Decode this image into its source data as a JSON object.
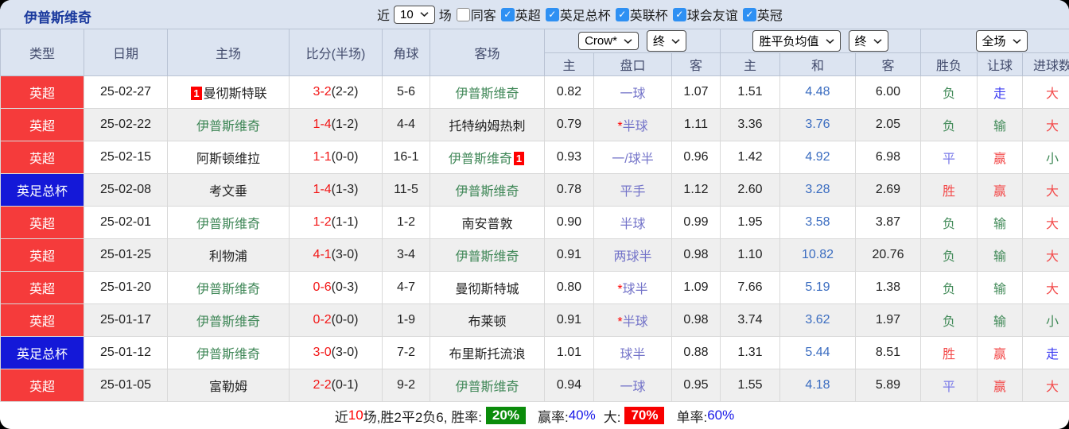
{
  "topbar": {
    "title": "伊普斯维奇",
    "recent_label": "近",
    "recent_value": "10",
    "matches_label": "场",
    "same_venue": {
      "label": "同客",
      "checked": false
    },
    "leagues": [
      {
        "label": "英超",
        "checked": true
      },
      {
        "label": "英足总杯",
        "checked": true
      },
      {
        "label": "英联杯",
        "checked": true
      },
      {
        "label": "球会友谊",
        "checked": true
      },
      {
        "label": "英冠",
        "checked": true
      }
    ]
  },
  "header": {
    "col_type": "类型",
    "col_date": "日期",
    "col_home": "主场",
    "col_score": "比分(半场)",
    "col_corner": "角球",
    "col_away": "客场",
    "bookmaker_select": "Crow*",
    "bookmaker_state_select": "终",
    "avg_select": "胜平负均值",
    "avg_state_select": "终",
    "scope_select": "全场",
    "sub_home": "主",
    "sub_handicap": "盘口",
    "sub_away": "客",
    "sub_avg_home": "主",
    "sub_avg_draw": "和",
    "sub_avg_away": "客",
    "sub_result": "胜负",
    "sub_ah_result": "让球",
    "sub_goals": "进球数"
  },
  "rows": [
    {
      "league": "英超",
      "league_color": "red",
      "date": "25-02-27",
      "home": "曼彻斯特联",
      "home_focus": false,
      "home_card": "1",
      "score": "3-2",
      "half": "(2-2)",
      "corners": "5-6",
      "away": "伊普斯维奇",
      "away_focus": true,
      "away_card": null,
      "ah_home": "0.82",
      "handicap": "一球",
      "ah_away": "1.07",
      "avg_home": "1.51",
      "avg_draw": "4.48",
      "avg_away": "6.00",
      "res_wdl": "负",
      "res_wdl_c": "green",
      "res_ah": "走",
      "res_ah_c": "blue",
      "res_goal": "大",
      "res_goal_c": "red"
    },
    {
      "league": "英超",
      "league_color": "red",
      "date": "25-02-22",
      "home": "伊普斯维奇",
      "home_focus": true,
      "home_card": null,
      "score": "1-4",
      "half": "(1-2)",
      "corners": "4-4",
      "away": "托特纳姆热刺",
      "away_focus": false,
      "away_card": null,
      "ah_home": "0.79",
      "handicap": "*半球",
      "ah_away": "1.11",
      "avg_home": "3.36",
      "avg_draw": "3.76",
      "avg_away": "2.05",
      "res_wdl": "负",
      "res_wdl_c": "green",
      "res_ah": "输",
      "res_ah_c": "green",
      "res_goal": "大",
      "res_goal_c": "red"
    },
    {
      "league": "英超",
      "league_color": "red",
      "date": "25-02-15",
      "home": "阿斯顿维拉",
      "home_focus": false,
      "home_card": null,
      "score": "1-1",
      "half": "(0-0)",
      "corners": "16-1",
      "away": "伊普斯维奇",
      "away_focus": true,
      "away_card": "1",
      "ah_home": "0.93",
      "handicap": "一/球半",
      "ah_away": "0.96",
      "avg_home": "1.42",
      "avg_draw": "4.92",
      "avg_away": "6.98",
      "res_wdl": "平",
      "res_wdl_c": "purple",
      "res_ah": "赢",
      "res_ah_c": "red",
      "res_goal": "小",
      "res_goal_c": "green"
    },
    {
      "league": "英足总杯",
      "league_color": "blue",
      "date": "25-02-08",
      "home": "考文垂",
      "home_focus": false,
      "home_card": null,
      "score": "1-4",
      "half": "(1-3)",
      "corners": "11-5",
      "away": "伊普斯维奇",
      "away_focus": true,
      "away_card": null,
      "ah_home": "0.78",
      "handicap": "平手",
      "ah_away": "1.12",
      "avg_home": "2.60",
      "avg_draw": "3.28",
      "avg_away": "2.69",
      "res_wdl": "胜",
      "res_wdl_c": "red",
      "res_ah": "赢",
      "res_ah_c": "red",
      "res_goal": "大",
      "res_goal_c": "red"
    },
    {
      "league": "英超",
      "league_color": "red",
      "date": "25-02-01",
      "home": "伊普斯维奇",
      "home_focus": true,
      "home_card": null,
      "score": "1-2",
      "half": "(1-1)",
      "corners": "1-2",
      "away": "南安普敦",
      "away_focus": false,
      "away_card": null,
      "ah_home": "0.90",
      "handicap": "半球",
      "ah_away": "0.99",
      "avg_home": "1.95",
      "avg_draw": "3.58",
      "avg_away": "3.87",
      "res_wdl": "负",
      "res_wdl_c": "green",
      "res_ah": "输",
      "res_ah_c": "green",
      "res_goal": "大",
      "res_goal_c": "red"
    },
    {
      "league": "英超",
      "league_color": "red",
      "date": "25-01-25",
      "home": "利物浦",
      "home_focus": false,
      "home_card": null,
      "score": "4-1",
      "half": "(3-0)",
      "corners": "3-4",
      "away": "伊普斯维奇",
      "away_focus": true,
      "away_card": null,
      "ah_home": "0.91",
      "handicap": "两球半",
      "ah_away": "0.98",
      "avg_home": "1.10",
      "avg_draw": "10.82",
      "avg_away": "20.76",
      "res_wdl": "负",
      "res_wdl_c": "green",
      "res_ah": "输",
      "res_ah_c": "green",
      "res_goal": "大",
      "res_goal_c": "red"
    },
    {
      "league": "英超",
      "league_color": "red",
      "date": "25-01-20",
      "home": "伊普斯维奇",
      "home_focus": true,
      "home_card": null,
      "score": "0-6",
      "half": "(0-3)",
      "corners": "4-7",
      "away": "曼彻斯特城",
      "away_focus": false,
      "away_card": null,
      "ah_home": "0.80",
      "handicap": "*球半",
      "ah_away": "1.09",
      "avg_home": "7.66",
      "avg_draw": "5.19",
      "avg_away": "1.38",
      "res_wdl": "负",
      "res_wdl_c": "green",
      "res_ah": "输",
      "res_ah_c": "green",
      "res_goal": "大",
      "res_goal_c": "red"
    },
    {
      "league": "英超",
      "league_color": "red",
      "date": "25-01-17",
      "home": "伊普斯维奇",
      "home_focus": true,
      "home_card": null,
      "score": "0-2",
      "half": "(0-0)",
      "corners": "1-9",
      "away": "布莱顿",
      "away_focus": false,
      "away_card": null,
      "ah_home": "0.91",
      "handicap": "*半球",
      "ah_away": "0.98",
      "avg_home": "3.74",
      "avg_draw": "3.62",
      "avg_away": "1.97",
      "res_wdl": "负",
      "res_wdl_c": "green",
      "res_ah": "输",
      "res_ah_c": "green",
      "res_goal": "小",
      "res_goal_c": "green"
    },
    {
      "league": "英足总杯",
      "league_color": "blue",
      "date": "25-01-12",
      "home": "伊普斯维奇",
      "home_focus": true,
      "home_card": null,
      "score": "3-0",
      "half": "(3-0)",
      "corners": "7-2",
      "away": "布里斯托流浪",
      "away_focus": false,
      "away_card": null,
      "ah_home": "1.01",
      "handicap": "球半",
      "ah_away": "0.88",
      "avg_home": "1.31",
      "avg_draw": "5.44",
      "avg_away": "8.51",
      "res_wdl": "胜",
      "res_wdl_c": "red",
      "res_ah": "赢",
      "res_ah_c": "red",
      "res_goal": "走",
      "res_goal_c": "blue"
    },
    {
      "league": "英超",
      "league_color": "red",
      "date": "25-01-05",
      "home": "富勒姆",
      "home_focus": false,
      "home_card": null,
      "score": "2-2",
      "half": "(0-1)",
      "corners": "9-2",
      "away": "伊普斯维奇",
      "away_focus": true,
      "away_card": null,
      "ah_home": "0.94",
      "handicap": "一球",
      "ah_away": "0.95",
      "avg_home": "1.55",
      "avg_draw": "4.18",
      "avg_away": "5.89",
      "res_wdl": "平",
      "res_wdl_c": "purple",
      "res_ah": "赢",
      "res_ah_c": "red",
      "res_goal": "大",
      "res_goal_c": "red"
    }
  ],
  "footer": {
    "text_recent": "近",
    "recent_count": "10",
    "text_after_count": "场,胜2平2负6, 胜率:",
    "win_rate_badge": "20%",
    "text_win": "赢率:",
    "win_value": "40%",
    "text_big": "大:",
    "big_badge": "70%",
    "text_single": "单率:",
    "single_value": "60%"
  },
  "colors": {
    "league_red": "#f53b3b",
    "league_blue": "#1418d8",
    "focus_team_green": "#3f8757",
    "score_red": "#f21515",
    "handicap_purple": "#7474c9",
    "draw_avg_blue": "#3a6cc0",
    "result_red": "#f34b4b",
    "result_green": "#418a58",
    "result_blue": "#3d3df2",
    "checkbox_blue": "#2e90f3",
    "title_blue": "#1b3a9e",
    "win_rate_badge_green": "#0b8c0b",
    "big_rate_badge_red": "#f80000"
  }
}
